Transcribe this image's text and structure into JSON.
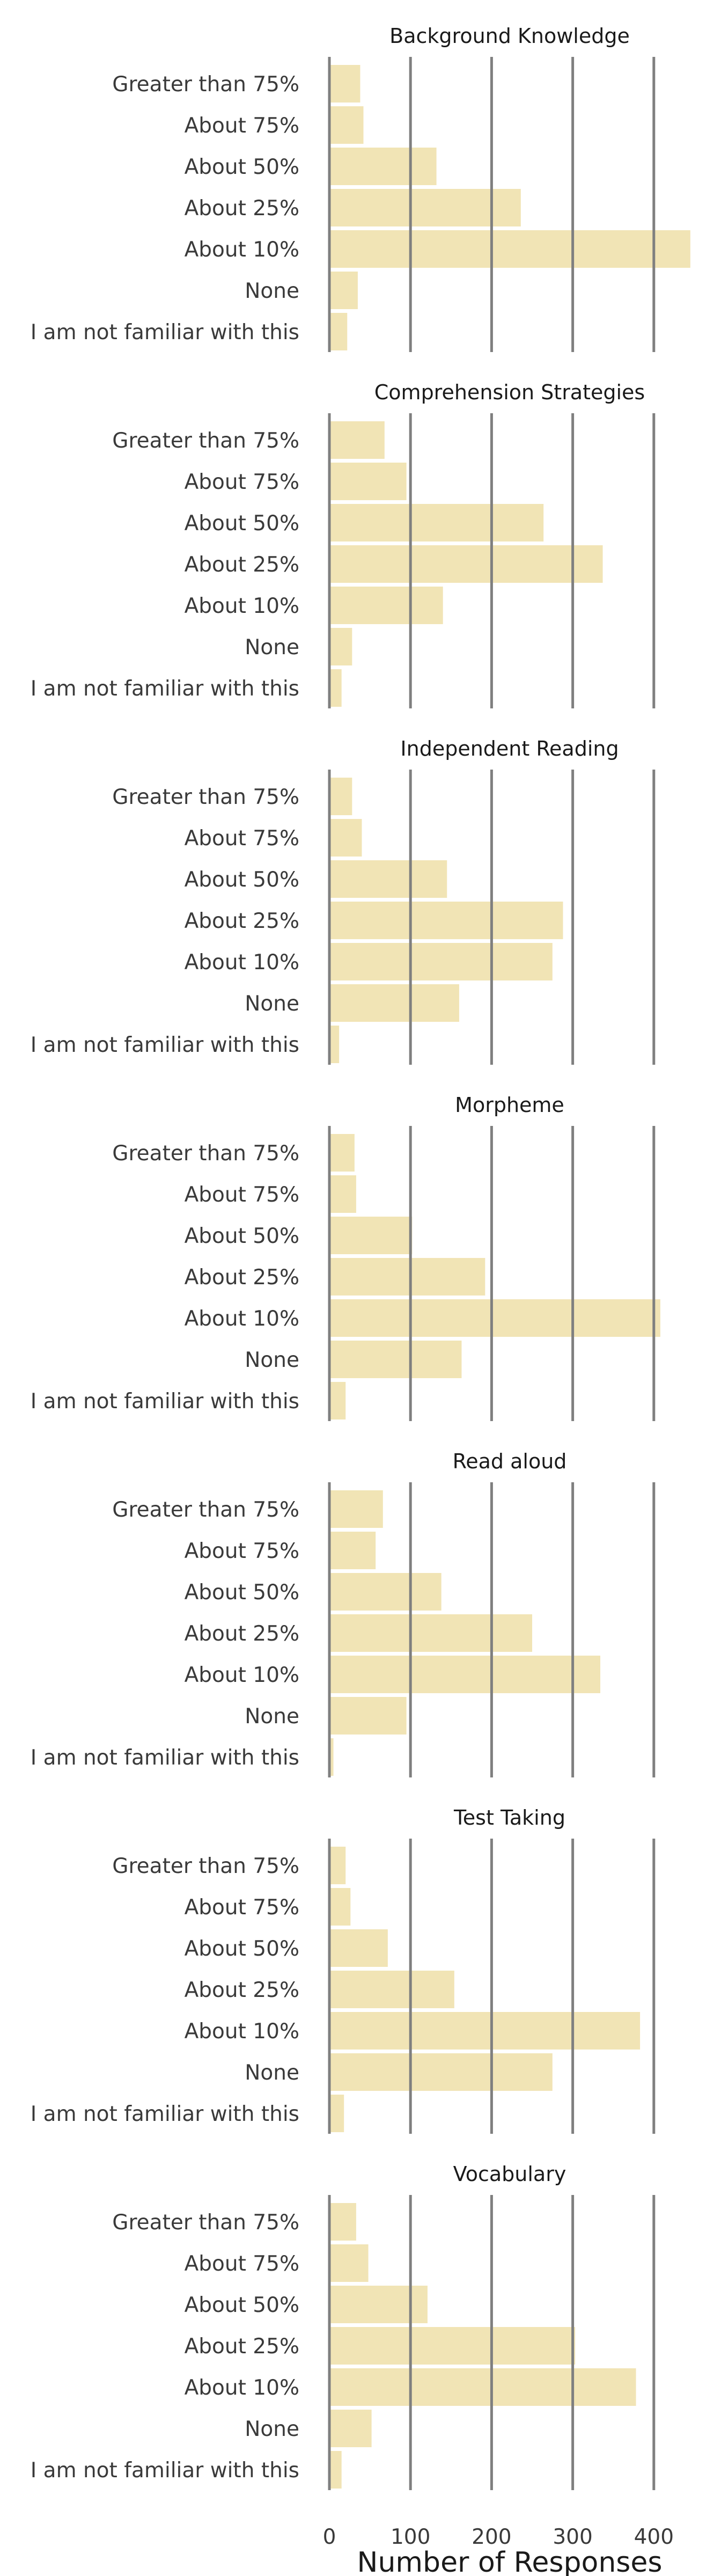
{
  "chart_data": {
    "type": "bar",
    "orientation": "horizontal",
    "xlabel": "Number of Responses",
    "xlim": [
      0,
      450
    ],
    "xticks": [
      0,
      100,
      200,
      300,
      400
    ],
    "grid": true,
    "bar_color": "#f0e2af",
    "grid_color": "#7f7f7f",
    "categories": [
      "Greater than 75%",
      "About 75%",
      "About 50%",
      "About 25%",
      "About 10%",
      "None",
      "I am not familiar with this"
    ],
    "panels": [
      {
        "title": "Background Knowledge",
        "values": [
          38,
          42,
          132,
          236,
          445,
          35,
          22
        ]
      },
      {
        "title": "Comprehension Strategies",
        "values": [
          68,
          95,
          264,
          337,
          140,
          28,
          15
        ]
      },
      {
        "title": "Independent Reading",
        "values": [
          28,
          40,
          145,
          288,
          275,
          160,
          12
        ]
      },
      {
        "title": "Morpheme",
        "values": [
          31,
          33,
          102,
          192,
          408,
          163,
          20
        ]
      },
      {
        "title": "Read aloud",
        "values": [
          66,
          57,
          138,
          250,
          334,
          95,
          5
        ]
      },
      {
        "title": "Test Taking",
        "values": [
          20,
          26,
          72,
          154,
          383,
          275,
          18
        ]
      },
      {
        "title": "Vocabulary",
        "values": [
          33,
          48,
          121,
          303,
          378,
          52,
          15
        ]
      }
    ]
  }
}
